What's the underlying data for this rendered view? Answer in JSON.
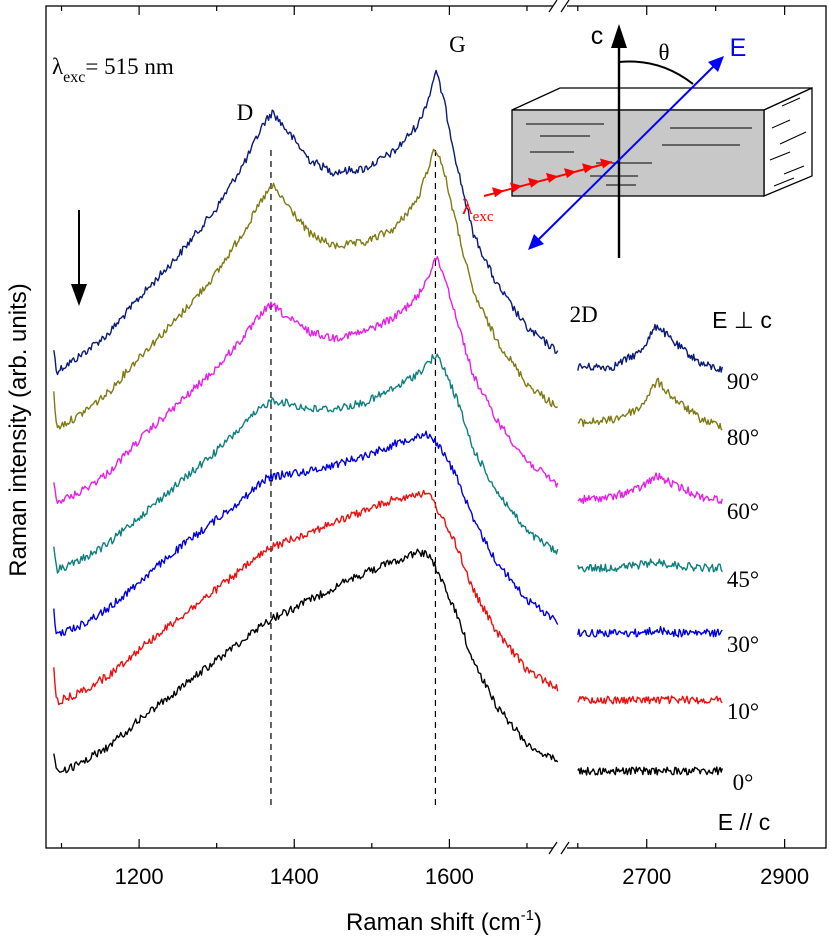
{
  "chart_data": {
    "type": "line",
    "xlabel": "Raman shift (cm",
    "xlabel_sup": "-1",
    "xlabel_end": ")",
    "ylabel": "Raman intensity (arb. units)",
    "x_segments": [
      {
        "range": [
          1080,
          1740
        ],
        "ticks": [
          1200,
          1400,
          1600
        ]
      },
      {
        "range": [
          2580,
          2960
        ],
        "ticks": [
          2700,
          2900
        ]
      }
    ],
    "tick_labels": [
      "1200",
      "1400",
      "1600",
      "2700",
      "2900"
    ],
    "excitation": {
      "lambda": "λ",
      "sub": "exc",
      "value": "= 515 nm"
    },
    "peak_labels": [
      {
        "text": "D",
        "x": 1370
      },
      {
        "text": "G",
        "x": 1582
      },
      {
        "text": "2D",
        "x": 2700
      }
    ],
    "dashed_lines_x": [
      1370,
      1582
    ],
    "polarization_top": "E ⊥ c",
    "polarization_bottom": "E // c",
    "series": [
      {
        "name": "90°",
        "color": "#0a1a78",
        "points": [
          [
            1090,
            0.03
          ],
          [
            1120,
            0.08
          ],
          [
            1160,
            0.16
          ],
          [
            1200,
            0.28
          ],
          [
            1250,
            0.42
          ],
          [
            1300,
            0.58
          ],
          [
            1340,
            0.75
          ],
          [
            1360,
            0.86
          ],
          [
            1372,
            0.9
          ],
          [
            1390,
            0.84
          ],
          [
            1420,
            0.74
          ],
          [
            1450,
            0.7
          ],
          [
            1490,
            0.71
          ],
          [
            1530,
            0.77
          ],
          [
            1560,
            0.86
          ],
          [
            1575,
            0.96
          ],
          [
            1582,
            1.04
          ],
          [
            1592,
            0.95
          ],
          [
            1610,
            0.72
          ],
          [
            1630,
            0.5
          ],
          [
            1660,
            0.33
          ],
          [
            1700,
            0.18
          ],
          [
            1740,
            0.1
          ]
        ],
        "points_2d": [
          [
            2600,
            0.05
          ],
          [
            2650,
            0.05
          ],
          [
            2690,
            0.1
          ],
          [
            2715,
            0.19
          ],
          [
            2740,
            0.13
          ],
          [
            2780,
            0.06
          ],
          [
            2810,
            0.04
          ]
        ]
      },
      {
        "name": "80°",
        "color": "#7f7a12",
        "points": [
          [
            1090,
            0.03
          ],
          [
            1120,
            0.07
          ],
          [
            1160,
            0.15
          ],
          [
            1200,
            0.27
          ],
          [
            1250,
            0.4
          ],
          [
            1300,
            0.55
          ],
          [
            1340,
            0.71
          ],
          [
            1360,
            0.8
          ],
          [
            1372,
            0.84
          ],
          [
            1390,
            0.78
          ],
          [
            1420,
            0.68
          ],
          [
            1450,
            0.64
          ],
          [
            1490,
            0.65
          ],
          [
            1530,
            0.7
          ],
          [
            1560,
            0.8
          ],
          [
            1575,
            0.92
          ],
          [
            1582,
            0.97
          ],
          [
            1592,
            0.9
          ],
          [
            1610,
            0.7
          ],
          [
            1630,
            0.49
          ],
          [
            1660,
            0.33
          ],
          [
            1700,
            0.18
          ],
          [
            1740,
            0.1
          ]
        ],
        "points_2d": [
          [
            2600,
            0.05
          ],
          [
            2650,
            0.06
          ],
          [
            2690,
            0.1
          ],
          [
            2715,
            0.19
          ],
          [
            2740,
            0.13
          ],
          [
            2780,
            0.06
          ],
          [
            2810,
            0.04
          ]
        ]
      },
      {
        "name": "60°",
        "color": "#e81ee8",
        "points": [
          [
            1090,
            0.03
          ],
          [
            1120,
            0.06
          ],
          [
            1160,
            0.13
          ],
          [
            1200,
            0.24
          ],
          [
            1250,
            0.36
          ],
          [
            1300,
            0.48
          ],
          [
            1340,
            0.6
          ],
          [
            1360,
            0.67
          ],
          [
            1372,
            0.69
          ],
          [
            1390,
            0.65
          ],
          [
            1420,
            0.6
          ],
          [
            1450,
            0.58
          ],
          [
            1490,
            0.6
          ],
          [
            1530,
            0.65
          ],
          [
            1560,
            0.72
          ],
          [
            1575,
            0.8
          ],
          [
            1582,
            0.85
          ],
          [
            1592,
            0.8
          ],
          [
            1610,
            0.64
          ],
          [
            1630,
            0.46
          ],
          [
            1660,
            0.31
          ],
          [
            1700,
            0.17
          ],
          [
            1740,
            0.09
          ]
        ],
        "points_2d": [
          [
            2600,
            0.04
          ],
          [
            2650,
            0.05
          ],
          [
            2690,
            0.08
          ],
          [
            2715,
            0.12
          ],
          [
            2740,
            0.09
          ],
          [
            2780,
            0.05
          ],
          [
            2810,
            0.04
          ]
        ]
      },
      {
        "name": "45°",
        "color": "#0e7f7f",
        "points": [
          [
            1090,
            0.03
          ],
          [
            1120,
            0.06
          ],
          [
            1160,
            0.12
          ],
          [
            1200,
            0.21
          ],
          [
            1250,
            0.32
          ],
          [
            1300,
            0.43
          ],
          [
            1340,
            0.53
          ],
          [
            1360,
            0.58
          ],
          [
            1372,
            0.6
          ],
          [
            1390,
            0.59
          ],
          [
            1420,
            0.57
          ],
          [
            1450,
            0.57
          ],
          [
            1490,
            0.59
          ],
          [
            1530,
            0.64
          ],
          [
            1560,
            0.69
          ],
          [
            1575,
            0.73
          ],
          [
            1582,
            0.75
          ],
          [
            1592,
            0.71
          ],
          [
            1610,
            0.6
          ],
          [
            1630,
            0.44
          ],
          [
            1660,
            0.3
          ],
          [
            1700,
            0.16
          ],
          [
            1740,
            0.09
          ]
        ],
        "points_2d": [
          [
            2600,
            0.04
          ],
          [
            2650,
            0.04
          ],
          [
            2690,
            0.05
          ],
          [
            2715,
            0.06
          ],
          [
            2740,
            0.05
          ],
          [
            2780,
            0.04
          ],
          [
            2810,
            0.04
          ]
        ]
      },
      {
        "name": "30°",
        "color": "#0000e0",
        "points": [
          [
            1090,
            0.03
          ],
          [
            1120,
            0.06
          ],
          [
            1160,
            0.12
          ],
          [
            1200,
            0.21
          ],
          [
            1250,
            0.32
          ],
          [
            1300,
            0.42
          ],
          [
            1340,
            0.5
          ],
          [
            1360,
            0.55
          ],
          [
            1372,
            0.56
          ],
          [
            1390,
            0.57
          ],
          [
            1420,
            0.58
          ],
          [
            1450,
            0.6
          ],
          [
            1490,
            0.63
          ],
          [
            1530,
            0.67
          ],
          [
            1560,
            0.7
          ],
          [
            1575,
            0.7
          ],
          [
            1582,
            0.68
          ],
          [
            1592,
            0.64
          ],
          [
            1610,
            0.56
          ],
          [
            1630,
            0.42
          ],
          [
            1660,
            0.28
          ],
          [
            1700,
            0.15
          ],
          [
            1740,
            0.08
          ]
        ],
        "points_2d": [
          [
            2600,
            0.04
          ],
          [
            2650,
            0.04
          ],
          [
            2690,
            0.04
          ],
          [
            2715,
            0.05
          ],
          [
            2740,
            0.04
          ],
          [
            2780,
            0.04
          ],
          [
            2810,
            0.04
          ]
        ]
      },
      {
        "name": "10°",
        "color": "#ee0e0e",
        "points": [
          [
            1090,
            0.03
          ],
          [
            1120,
            0.06
          ],
          [
            1160,
            0.12
          ],
          [
            1200,
            0.21
          ],
          [
            1250,
            0.31
          ],
          [
            1300,
            0.41
          ],
          [
            1340,
            0.49
          ],
          [
            1360,
            0.53
          ],
          [
            1372,
            0.55
          ],
          [
            1390,
            0.57
          ],
          [
            1420,
            0.6
          ],
          [
            1450,
            0.63
          ],
          [
            1490,
            0.67
          ],
          [
            1530,
            0.71
          ],
          [
            1560,
            0.73
          ],
          [
            1575,
            0.72
          ],
          [
            1582,
            0.69
          ],
          [
            1592,
            0.64
          ],
          [
            1610,
            0.55
          ],
          [
            1630,
            0.41
          ],
          [
            1660,
            0.27
          ],
          [
            1700,
            0.14
          ],
          [
            1740,
            0.08
          ]
        ],
        "points_2d": [
          [
            2600,
            0.04
          ],
          [
            2650,
            0.04
          ],
          [
            2690,
            0.04
          ],
          [
            2715,
            0.04
          ],
          [
            2740,
            0.04
          ],
          [
            2780,
            0.04
          ],
          [
            2810,
            0.04
          ]
        ]
      },
      {
        "name": "0°",
        "color": "#000000",
        "points": [
          [
            1090,
            0.03
          ],
          [
            1120,
            0.06
          ],
          [
            1160,
            0.12
          ],
          [
            1200,
            0.21
          ],
          [
            1250,
            0.31
          ],
          [
            1300,
            0.41
          ],
          [
            1340,
            0.49
          ],
          [
            1360,
            0.53
          ],
          [
            1372,
            0.55
          ],
          [
            1390,
            0.57
          ],
          [
            1420,
            0.61
          ],
          [
            1450,
            0.65
          ],
          [
            1490,
            0.7
          ],
          [
            1530,
            0.74
          ],
          [
            1560,
            0.77
          ],
          [
            1575,
            0.76
          ],
          [
            1582,
            0.72
          ],
          [
            1592,
            0.66
          ],
          [
            1610,
            0.56
          ],
          [
            1630,
            0.41
          ],
          [
            1660,
            0.26
          ],
          [
            1700,
            0.13
          ],
          [
            1740,
            0.07
          ]
        ],
        "points_2d": [
          [
            2600,
            0.04
          ],
          [
            2650,
            0.04
          ],
          [
            2690,
            0.04
          ],
          [
            2715,
            0.04
          ],
          [
            2740,
            0.04
          ],
          [
            2780,
            0.04
          ],
          [
            2810,
            0.04
          ]
        ]
      }
    ],
    "inset": {
      "c_label": "c",
      "theta_label": "θ",
      "e_label": "E",
      "lambda": "λ",
      "lambda_sub": "exc",
      "e_color": "#0000ff",
      "laser_color": "#ff0000",
      "block_color": "#c8c8c8"
    }
  }
}
